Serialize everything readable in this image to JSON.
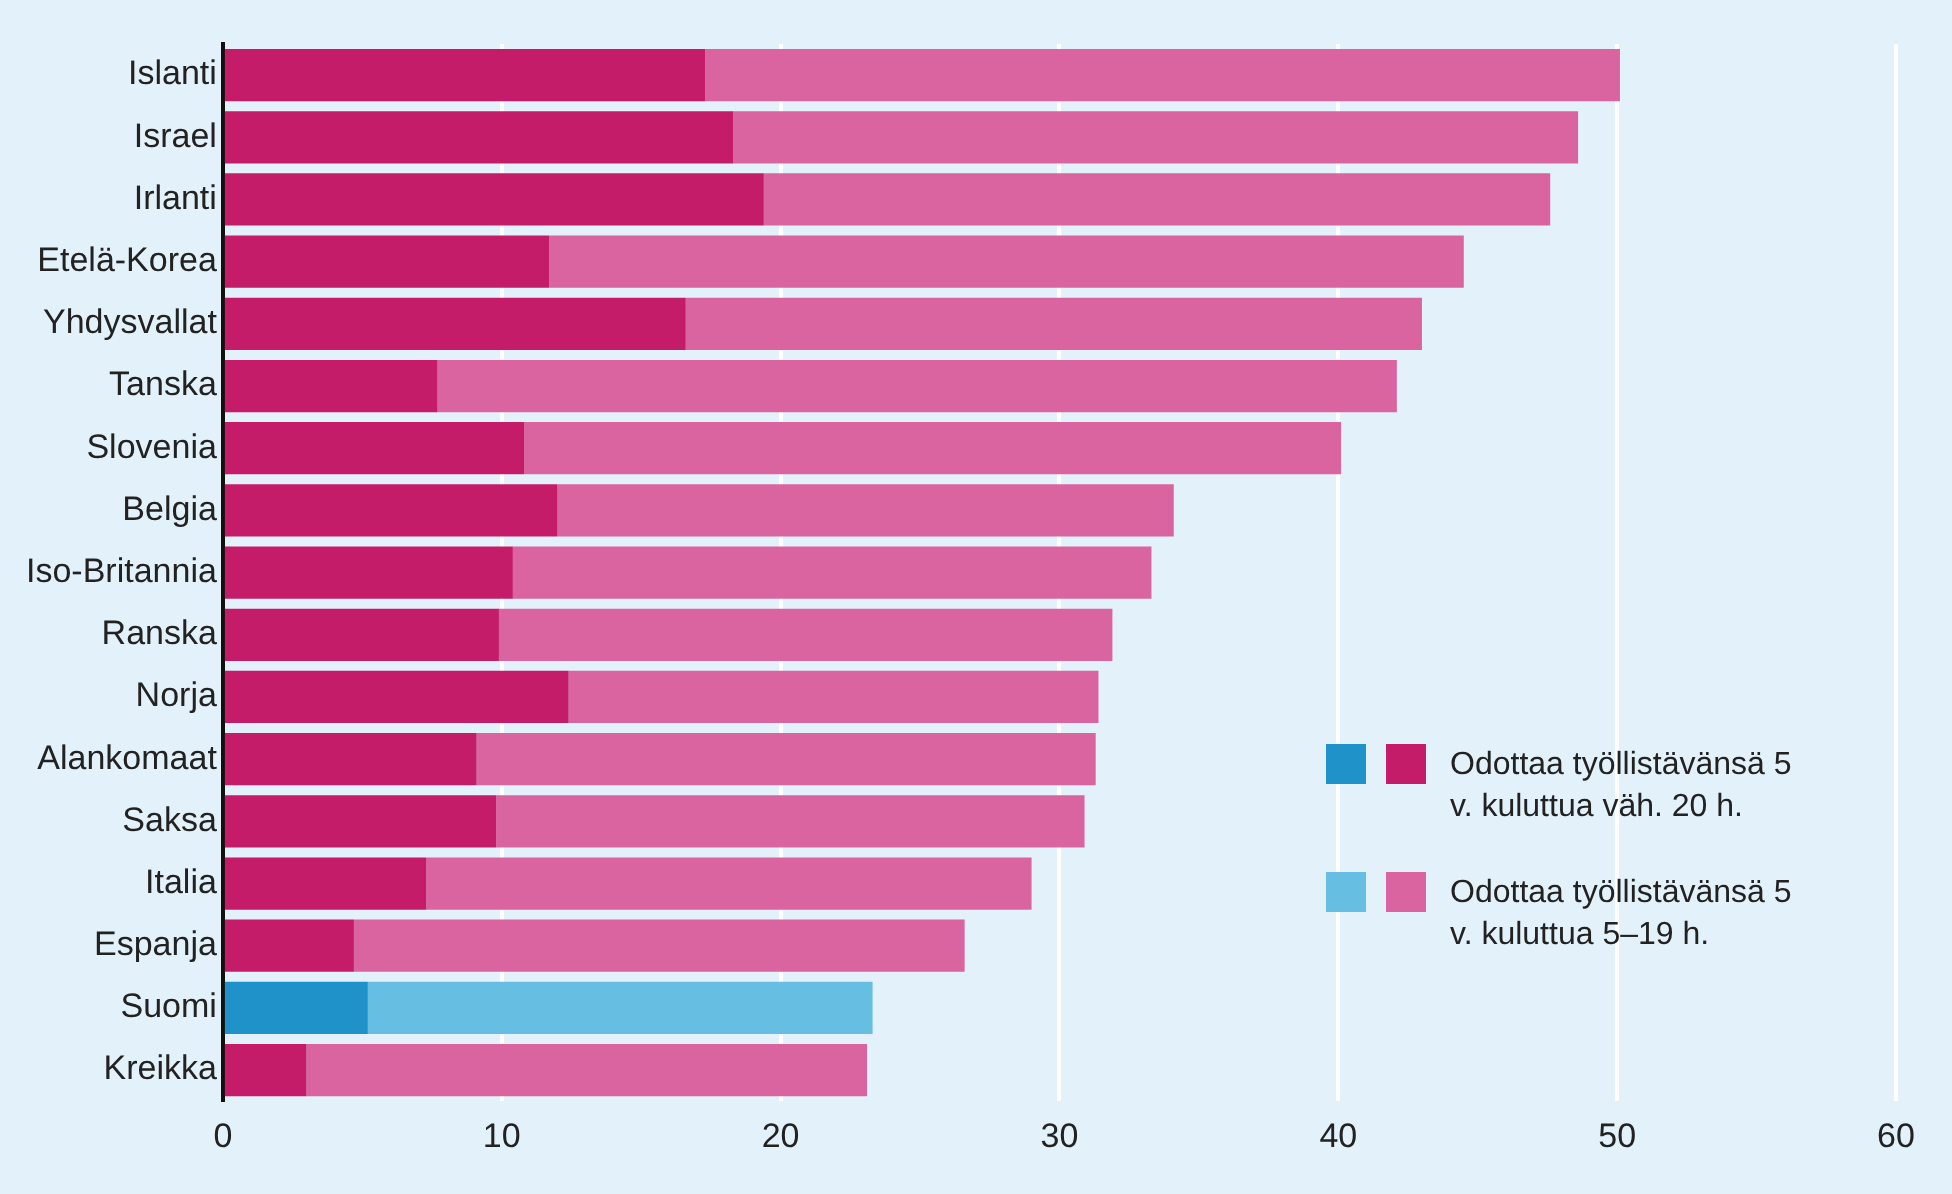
{
  "chart_data": {
    "type": "bar",
    "orientation": "horizontal",
    "stacked": true,
    "categories": [
      "Islanti",
      "Israel",
      "Irlanti",
      "Etelä-Korea",
      "Yhdysvallat",
      "Tanska",
      "Slovenia",
      "Belgia",
      "Iso-Britannia",
      "Ranska",
      "Norja",
      "Alankomaat",
      "Saksa",
      "Italia",
      "Espanja",
      "Suomi",
      "Kreikka"
    ],
    "series": [
      {
        "name": "Odottaa työllistävänsä 5 v. kuluttua väh. 20 h.",
        "color": "#c51c6a",
        "colors": [
          "#c51c6a",
          "#c51c6a",
          "#c51c6a",
          "#c51c6a",
          "#c51c6a",
          "#c51c6a",
          "#c51c6a",
          "#c51c6a",
          "#c51c6a",
          "#c51c6a",
          "#c51c6a",
          "#c51c6a",
          "#c51c6a",
          "#c51c6a",
          "#c51c6a",
          "#1f93c9",
          "#c51c6a"
        ],
        "values": [
          17.3,
          18.3,
          19.4,
          11.7,
          16.6,
          7.7,
          10.8,
          12.0,
          10.4,
          9.9,
          12.4,
          9.1,
          9.8,
          7.3,
          4.7,
          5.2,
          3.0
        ]
      },
      {
        "name": "Odottaa työllistävänsä 5 v. kuluttua 5–19 h.",
        "color": "#d9649f",
        "colors": [
          "#d9649f",
          "#d9649f",
          "#d9649f",
          "#d9649f",
          "#d9649f",
          "#d9649f",
          "#d9649f",
          "#d9649f",
          "#d9649f",
          "#d9649f",
          "#d9649f",
          "#d9649f",
          "#d9649f",
          "#d9649f",
          "#d9649f",
          "#66bfe3",
          "#d9649f"
        ],
        "values": [
          32.8,
          30.3,
          28.2,
          32.8,
          26.4,
          34.4,
          29.3,
          22.1,
          22.9,
          22.0,
          19.0,
          22.2,
          21.1,
          21.7,
          21.9,
          18.1,
          20.1
        ]
      }
    ],
    "xlim": [
      0,
      60
    ],
    "xticks": [
      0,
      10,
      20,
      30,
      40,
      50,
      60
    ],
    "grid": "x",
    "legend": "right"
  }
}
